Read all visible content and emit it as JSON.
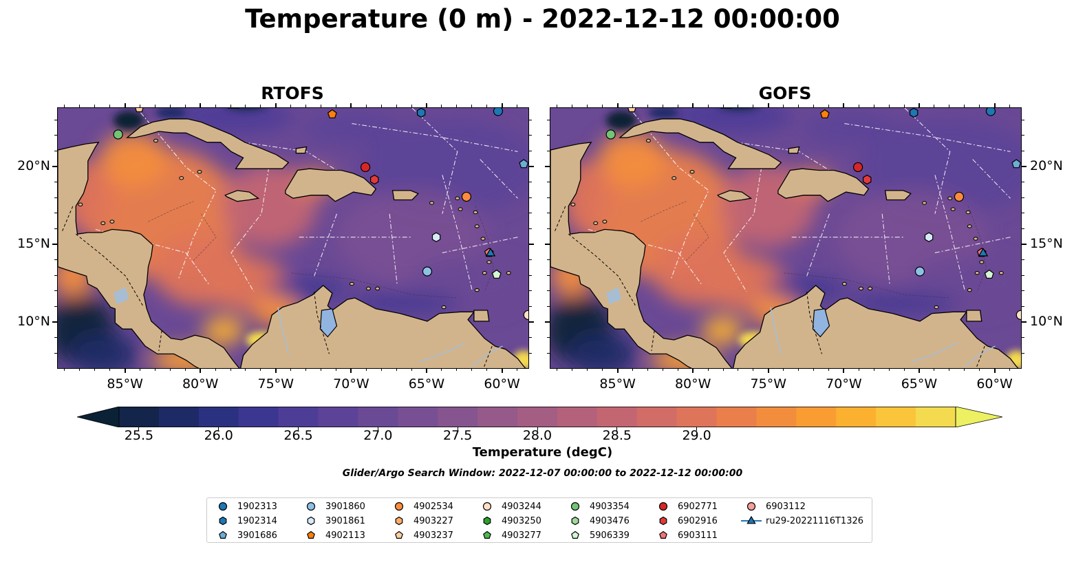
{
  "title": "Temperature (0 m) - 2022-12-12 00:00:00",
  "panels": [
    {
      "name": "rtofs",
      "title": "RTOFS"
    },
    {
      "name": "gofs",
      "title": "GOFS"
    }
  ],
  "axes": {
    "lon_ticks": [
      "85°W",
      "80°W",
      "75°W",
      "70°W",
      "65°W",
      "60°W"
    ],
    "lat_ticks": [
      "20°N",
      "15°N",
      "10°N"
    ],
    "lon_range": [
      -89.5,
      -58.2
    ],
    "lat_range": [
      7.0,
      23.8
    ]
  },
  "colorbar": {
    "label": "Temperature (degC)",
    "ticks": [
      "25.5",
      "26.0",
      "26.5",
      "27.0",
      "27.5",
      "28.0",
      "28.5",
      "29.0"
    ],
    "range": [
      25.5,
      29.25
    ],
    "colormap": "thermal",
    "colors": [
      "#0b2136",
      "#14254b",
      "#1e2a66",
      "#2b3181",
      "#3b3791",
      "#4e3d97",
      "#5d4397",
      "#6a4995",
      "#784f93",
      "#86548f",
      "#95598a",
      "#a45d83",
      "#b4617b",
      "#c36672",
      "#d16c66",
      "#de745a",
      "#ea7f4c",
      "#f38d3e",
      "#f99d33",
      "#fbb12f",
      "#fac53a",
      "#f4da4e",
      "#ecf061"
    ]
  },
  "search_window": "Glider/Argo Search Window: 2022-12-07 00:00:00 to 2022-12-12 00:00:00",
  "legend": [
    {
      "label": "1902313",
      "marker": "circle",
      "color": "#1f77b4"
    },
    {
      "label": "1902314",
      "marker": "hexagon",
      "color": "#1f77b4"
    },
    {
      "label": "3901686",
      "marker": "pentagon",
      "color": "#6baed6"
    },
    {
      "label": "3901860",
      "marker": "circle",
      "color": "#8ec1e6"
    },
    {
      "label": "3901861",
      "marker": "hexagon",
      "color": "#d6eaf8"
    },
    {
      "label": "4902113",
      "marker": "pentagon",
      "color": "#fd7f0e"
    },
    {
      "label": "4902534",
      "marker": "circle",
      "color": "#fd8d3c"
    },
    {
      "label": "4903227",
      "marker": "hexagon",
      "color": "#fdae6b"
    },
    {
      "label": "4903237",
      "marker": "pentagon",
      "color": "#fdd0a2"
    },
    {
      "label": "4903244",
      "marker": "circle",
      "color": "#fee0c6"
    },
    {
      "label": "4903250",
      "marker": "hexagon",
      "color": "#2ca02c"
    },
    {
      "label": "4903277",
      "marker": "pentagon",
      "color": "#4dbb4d"
    },
    {
      "label": "4903354",
      "marker": "circle",
      "color": "#74c476"
    },
    {
      "label": "4903476",
      "marker": "hexagon",
      "color": "#a1d99b"
    },
    {
      "label": "5906339",
      "marker": "pentagon",
      "color": "#d4f7d4"
    },
    {
      "label": "6902771",
      "marker": "circle",
      "color": "#d62728"
    },
    {
      "label": "6902916",
      "marker": "hexagon",
      "color": "#e03b3b"
    },
    {
      "label": "6903111",
      "marker": "pentagon",
      "color": "#f07575"
    },
    {
      "label": "6903112",
      "marker": "circle",
      "color": "#f4a09a"
    },
    {
      "label": "ru29-20221116T1326",
      "marker": "triangle-line",
      "color": "#1f77b4"
    }
  ],
  "markers": [
    {
      "label": "4903354",
      "lon": -85.5,
      "lat": 22.1
    },
    {
      "label": "4903237",
      "lon": -84.1,
      "lat": 23.8
    },
    {
      "label": "4902113",
      "lon": -71.3,
      "lat": 23.4
    },
    {
      "label": "1902314",
      "lon": -65.4,
      "lat": 23.5
    },
    {
      "label": "1902313",
      "lon": -60.3,
      "lat": 23.6
    },
    {
      "label": "3901686",
      "lon": -58.6,
      "lat": 20.2
    },
    {
      "label": "6902771",
      "lon": -69.1,
      "lat": 20.0
    },
    {
      "label": "6902916",
      "lon": -68.5,
      "lat": 19.2
    },
    {
      "label": "4902534",
      "lon": -62.4,
      "lat": 18.1
    },
    {
      "label": "3901861",
      "lon": -64.4,
      "lat": 15.5
    },
    {
      "label": "3901860",
      "lon": -65.0,
      "lat": 13.3
    },
    {
      "label": "6903111",
      "lon": -60.9,
      "lat": 14.5
    },
    {
      "label": "ru29-20221116T1326",
      "lon": -60.8,
      "lat": 14.5
    },
    {
      "label": "5906339",
      "lon": -60.4,
      "lat": 13.1
    },
    {
      "label": "4903244",
      "lon": -58.3,
      "lat": 10.5
    }
  ],
  "land_color": "#d2b48c"
}
